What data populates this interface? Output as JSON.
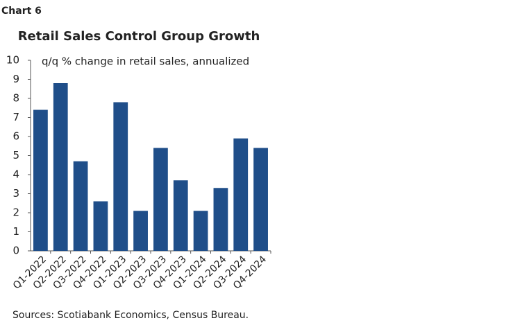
{
  "chart_data": {
    "type": "bar",
    "chart_label": "Chart 6",
    "title": "Retail Sales Control Group Growth",
    "subtitle": "q/q % change in retail sales, annualized",
    "source": "Sources: Scotiabank Economics, Census Bureau.",
    "categories": [
      "Q1-2022",
      "Q2-2022",
      "Q3-2022",
      "Q4-2022",
      "Q1-2023",
      "Q2-2023",
      "Q3-2023",
      "Q4-2023",
      "Q1-2024",
      "Q2-2024",
      "Q3-2024",
      "Q4-2024"
    ],
    "values": [
      7.4,
      8.8,
      4.7,
      2.6,
      7.8,
      2.1,
      5.4,
      3.7,
      2.1,
      3.3,
      5.9,
      5.4
    ],
    "color": "#1f4e89",
    "ylim": [
      0,
      10
    ],
    "yticks": [
      0,
      1,
      2,
      3,
      4,
      5,
      6,
      7,
      8,
      9,
      10
    ],
    "grid": false
  }
}
